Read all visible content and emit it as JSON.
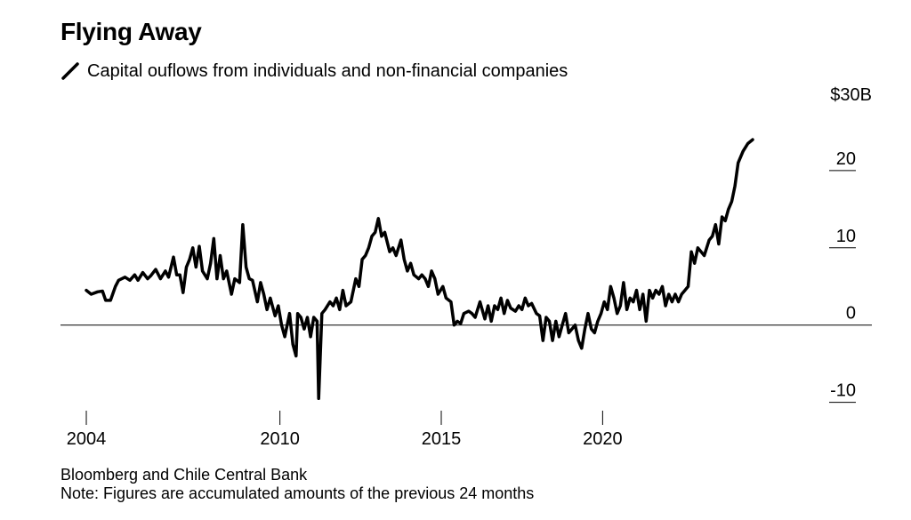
{
  "chart_data": {
    "type": "line",
    "title": "Flying Away",
    "series": [
      {
        "name": "Capital ouflows from individuals and non-financial companies",
        "color": "#000000",
        "points": [
          [
            2004.0,
            4.5
          ],
          [
            2004.15,
            4.0
          ],
          [
            2004.35,
            4.3
          ],
          [
            2004.5,
            4.4
          ],
          [
            2004.6,
            3.2
          ],
          [
            2004.75,
            3.2
          ],
          [
            2004.9,
            5.0
          ],
          [
            2005.0,
            5.8
          ],
          [
            2005.2,
            6.2
          ],
          [
            2005.35,
            5.8
          ],
          [
            2005.5,
            6.5
          ],
          [
            2005.6,
            5.8
          ],
          [
            2005.75,
            6.8
          ],
          [
            2005.9,
            6.0
          ],
          [
            2006.0,
            6.4
          ],
          [
            2006.15,
            7.2
          ],
          [
            2006.3,
            6.0
          ],
          [
            2006.45,
            7.0
          ],
          [
            2006.55,
            6.2
          ],
          [
            2006.7,
            8.8
          ],
          [
            2006.8,
            6.5
          ],
          [
            2006.9,
            6.5
          ],
          [
            2007.0,
            4.2
          ],
          [
            2007.1,
            7.5
          ],
          [
            2007.2,
            8.5
          ],
          [
            2007.3,
            10.0
          ],
          [
            2007.4,
            7.5
          ],
          [
            2007.5,
            10.2
          ],
          [
            2007.6,
            7.0
          ],
          [
            2007.75,
            6.0
          ],
          [
            2007.85,
            8.0
          ],
          [
            2007.95,
            11.2
          ],
          [
            2008.05,
            6.0
          ],
          [
            2008.15,
            9.0
          ],
          [
            2008.25,
            6.0
          ],
          [
            2008.35,
            7.0
          ],
          [
            2008.5,
            4.0
          ],
          [
            2008.6,
            6.0
          ],
          [
            2008.75,
            5.5
          ],
          [
            2008.85,
            13.0
          ],
          [
            2008.95,
            7.5
          ],
          [
            2009.05,
            6.0
          ],
          [
            2009.15,
            5.8
          ],
          [
            2009.3,
            3.0
          ],
          [
            2009.4,
            5.5
          ],
          [
            2009.5,
            4.0
          ],
          [
            2009.6,
            2.0
          ],
          [
            2009.7,
            3.5
          ],
          [
            2009.85,
            1.2
          ],
          [
            2009.95,
            2.5
          ],
          [
            2010.05,
            0.0
          ],
          [
            2010.15,
            -1.5
          ],
          [
            2010.3,
            1.5
          ],
          [
            2010.4,
            -2.5
          ],
          [
            2010.5,
            -4.0
          ],
          [
            2010.55,
            1.5
          ],
          [
            2010.65,
            1.0
          ],
          [
            2010.75,
            -0.5
          ],
          [
            2010.85,
            1.0
          ],
          [
            2010.95,
            -1.5
          ],
          [
            2011.05,
            1.0
          ],
          [
            2011.15,
            0.5
          ],
          [
            2011.2,
            -9.5
          ],
          [
            2011.3,
            1.5
          ],
          [
            2011.4,
            2.0
          ],
          [
            2011.55,
            3.0
          ],
          [
            2011.65,
            2.5
          ],
          [
            2011.75,
            3.5
          ],
          [
            2011.85,
            2.0
          ],
          [
            2011.95,
            4.5
          ],
          [
            2012.05,
            2.5
          ],
          [
            2012.2,
            3.0
          ],
          [
            2012.35,
            6.0
          ],
          [
            2012.45,
            5.0
          ],
          [
            2012.55,
            8.5
          ],
          [
            2012.65,
            9.0
          ],
          [
            2012.75,
            10.0
          ],
          [
            2012.85,
            11.5
          ],
          [
            2012.95,
            12.0
          ],
          [
            2013.05,
            13.8
          ],
          [
            2013.15,
            11.5
          ],
          [
            2013.25,
            12.0
          ],
          [
            2013.4,
            9.5
          ],
          [
            2013.5,
            10.0
          ],
          [
            2013.6,
            9.0
          ],
          [
            2013.75,
            11.0
          ],
          [
            2013.85,
            8.5
          ],
          [
            2013.95,
            7.0
          ],
          [
            2014.05,
            8.0
          ],
          [
            2014.15,
            6.5
          ],
          [
            2014.3,
            6.0
          ],
          [
            2014.4,
            6.5
          ],
          [
            2014.5,
            6.0
          ],
          [
            2014.6,
            5.0
          ],
          [
            2014.7,
            7.0
          ],
          [
            2014.8,
            6.0
          ],
          [
            2014.9,
            4.0
          ],
          [
            2015.05,
            5.0
          ],
          [
            2015.15,
            3.5
          ],
          [
            2015.3,
            3.0
          ],
          [
            2015.4,
            0.0
          ],
          [
            2015.5,
            0.5
          ],
          [
            2015.6,
            0.2
          ],
          [
            2015.7,
            1.5
          ],
          [
            2015.85,
            1.8
          ],
          [
            2015.95,
            1.5
          ],
          [
            2016.05,
            1.0
          ],
          [
            2016.2,
            3.0
          ],
          [
            2016.35,
            0.8
          ],
          [
            2016.45,
            2.5
          ],
          [
            2016.55,
            0.5
          ],
          [
            2016.65,
            2.5
          ],
          [
            2016.75,
            2.0
          ],
          [
            2016.85,
            3.5
          ],
          [
            2016.95,
            1.5
          ],
          [
            2017.05,
            3.2
          ],
          [
            2017.15,
            2.2
          ],
          [
            2017.3,
            1.8
          ],
          [
            2017.4,
            2.5
          ],
          [
            2017.5,
            2.0
          ],
          [
            2017.6,
            3.5
          ],
          [
            2017.7,
            2.5
          ],
          [
            2017.8,
            2.8
          ],
          [
            2017.95,
            1.5
          ],
          [
            2018.05,
            1.2
          ],
          [
            2018.15,
            -2.0
          ],
          [
            2018.25,
            1.0
          ],
          [
            2018.35,
            0.5
          ],
          [
            2018.45,
            -2.0
          ],
          [
            2018.55,
            0.5
          ],
          [
            2018.65,
            -1.5
          ],
          [
            2018.75,
            0.0
          ],
          [
            2018.85,
            1.5
          ],
          [
            2018.95,
            -1.0
          ],
          [
            2019.05,
            -0.5
          ],
          [
            2019.15,
            0.0
          ],
          [
            2019.25,
            -2.0
          ],
          [
            2019.35,
            -3.0
          ],
          [
            2019.45,
            -0.5
          ],
          [
            2019.55,
            1.5
          ],
          [
            2019.65,
            -0.5
          ],
          [
            2019.75,
            -1.0
          ],
          [
            2019.85,
            0.5
          ],
          [
            2019.95,
            1.5
          ],
          [
            2020.05,
            3.0
          ],
          [
            2020.15,
            2.0
          ],
          [
            2020.25,
            5.0
          ],
          [
            2020.35,
            3.5
          ],
          [
            2020.45,
            1.5
          ],
          [
            2020.55,
            2.5
          ],
          [
            2020.65,
            5.5
          ],
          [
            2020.75,
            2.0
          ],
          [
            2020.85,
            3.5
          ],
          [
            2020.95,
            3.0
          ],
          [
            2021.05,
            4.5
          ],
          [
            2021.15,
            2.0
          ],
          [
            2021.25,
            4.0
          ],
          [
            2021.35,
            0.5
          ],
          [
            2021.45,
            4.5
          ],
          [
            2021.55,
            3.5
          ],
          [
            2021.65,
            4.5
          ],
          [
            2021.75,
            4.0
          ],
          [
            2021.85,
            5.0
          ],
          [
            2021.95,
            2.5
          ],
          [
            2022.05,
            4.0
          ],
          [
            2022.15,
            3.0
          ],
          [
            2022.25,
            4.0
          ],
          [
            2022.35,
            3.0
          ],
          [
            2022.45,
            4.0
          ],
          [
            2022.55,
            4.5
          ],
          [
            2022.65,
            5.0
          ],
          [
            2022.75,
            9.5
          ],
          [
            2022.85,
            8.0
          ],
          [
            2022.95,
            10.0
          ],
          [
            2023.05,
            9.5
          ],
          [
            2023.15,
            9.0
          ],
          [
            2023.3,
            11.0
          ],
          [
            2023.4,
            11.5
          ],
          [
            2023.5,
            13.0
          ],
          [
            2023.6,
            10.5
          ],
          [
            2023.7,
            14.0
          ],
          [
            2023.8,
            13.5
          ],
          [
            2023.9,
            15.0
          ],
          [
            2024.0,
            16.0
          ],
          [
            2024.1,
            18.0
          ],
          [
            2024.2,
            21.0
          ],
          [
            2024.35,
            22.5
          ],
          [
            2024.5,
            23.5
          ],
          [
            2024.65,
            24.0
          ]
        ]
      }
    ],
    "x_ticks": [
      {
        "value": 2004.0,
        "label": "2004"
      },
      {
        "value": 2010.0,
        "label": "2010"
      },
      {
        "value": 2015.0,
        "label": "2015"
      },
      {
        "value": 2020.0,
        "label": "2020"
      }
    ],
    "y_ticks": [
      {
        "value": 20,
        "label": "20"
      },
      {
        "value": 10,
        "label": "10"
      },
      {
        "value": 0,
        "label": "0"
      },
      {
        "value": -10,
        "label": "-10"
      }
    ],
    "y_unit_label": "$30B",
    "xlim": [
      2003.2,
      2026.0
    ],
    "ylim": [
      -12,
      30
    ],
    "grid": false,
    "zero_line": true,
    "legend_position": "top-left",
    "source": "Bloomberg and Chile Central Bank",
    "note": "Note: Figures are accumulated amounts of the previous 24 months"
  }
}
